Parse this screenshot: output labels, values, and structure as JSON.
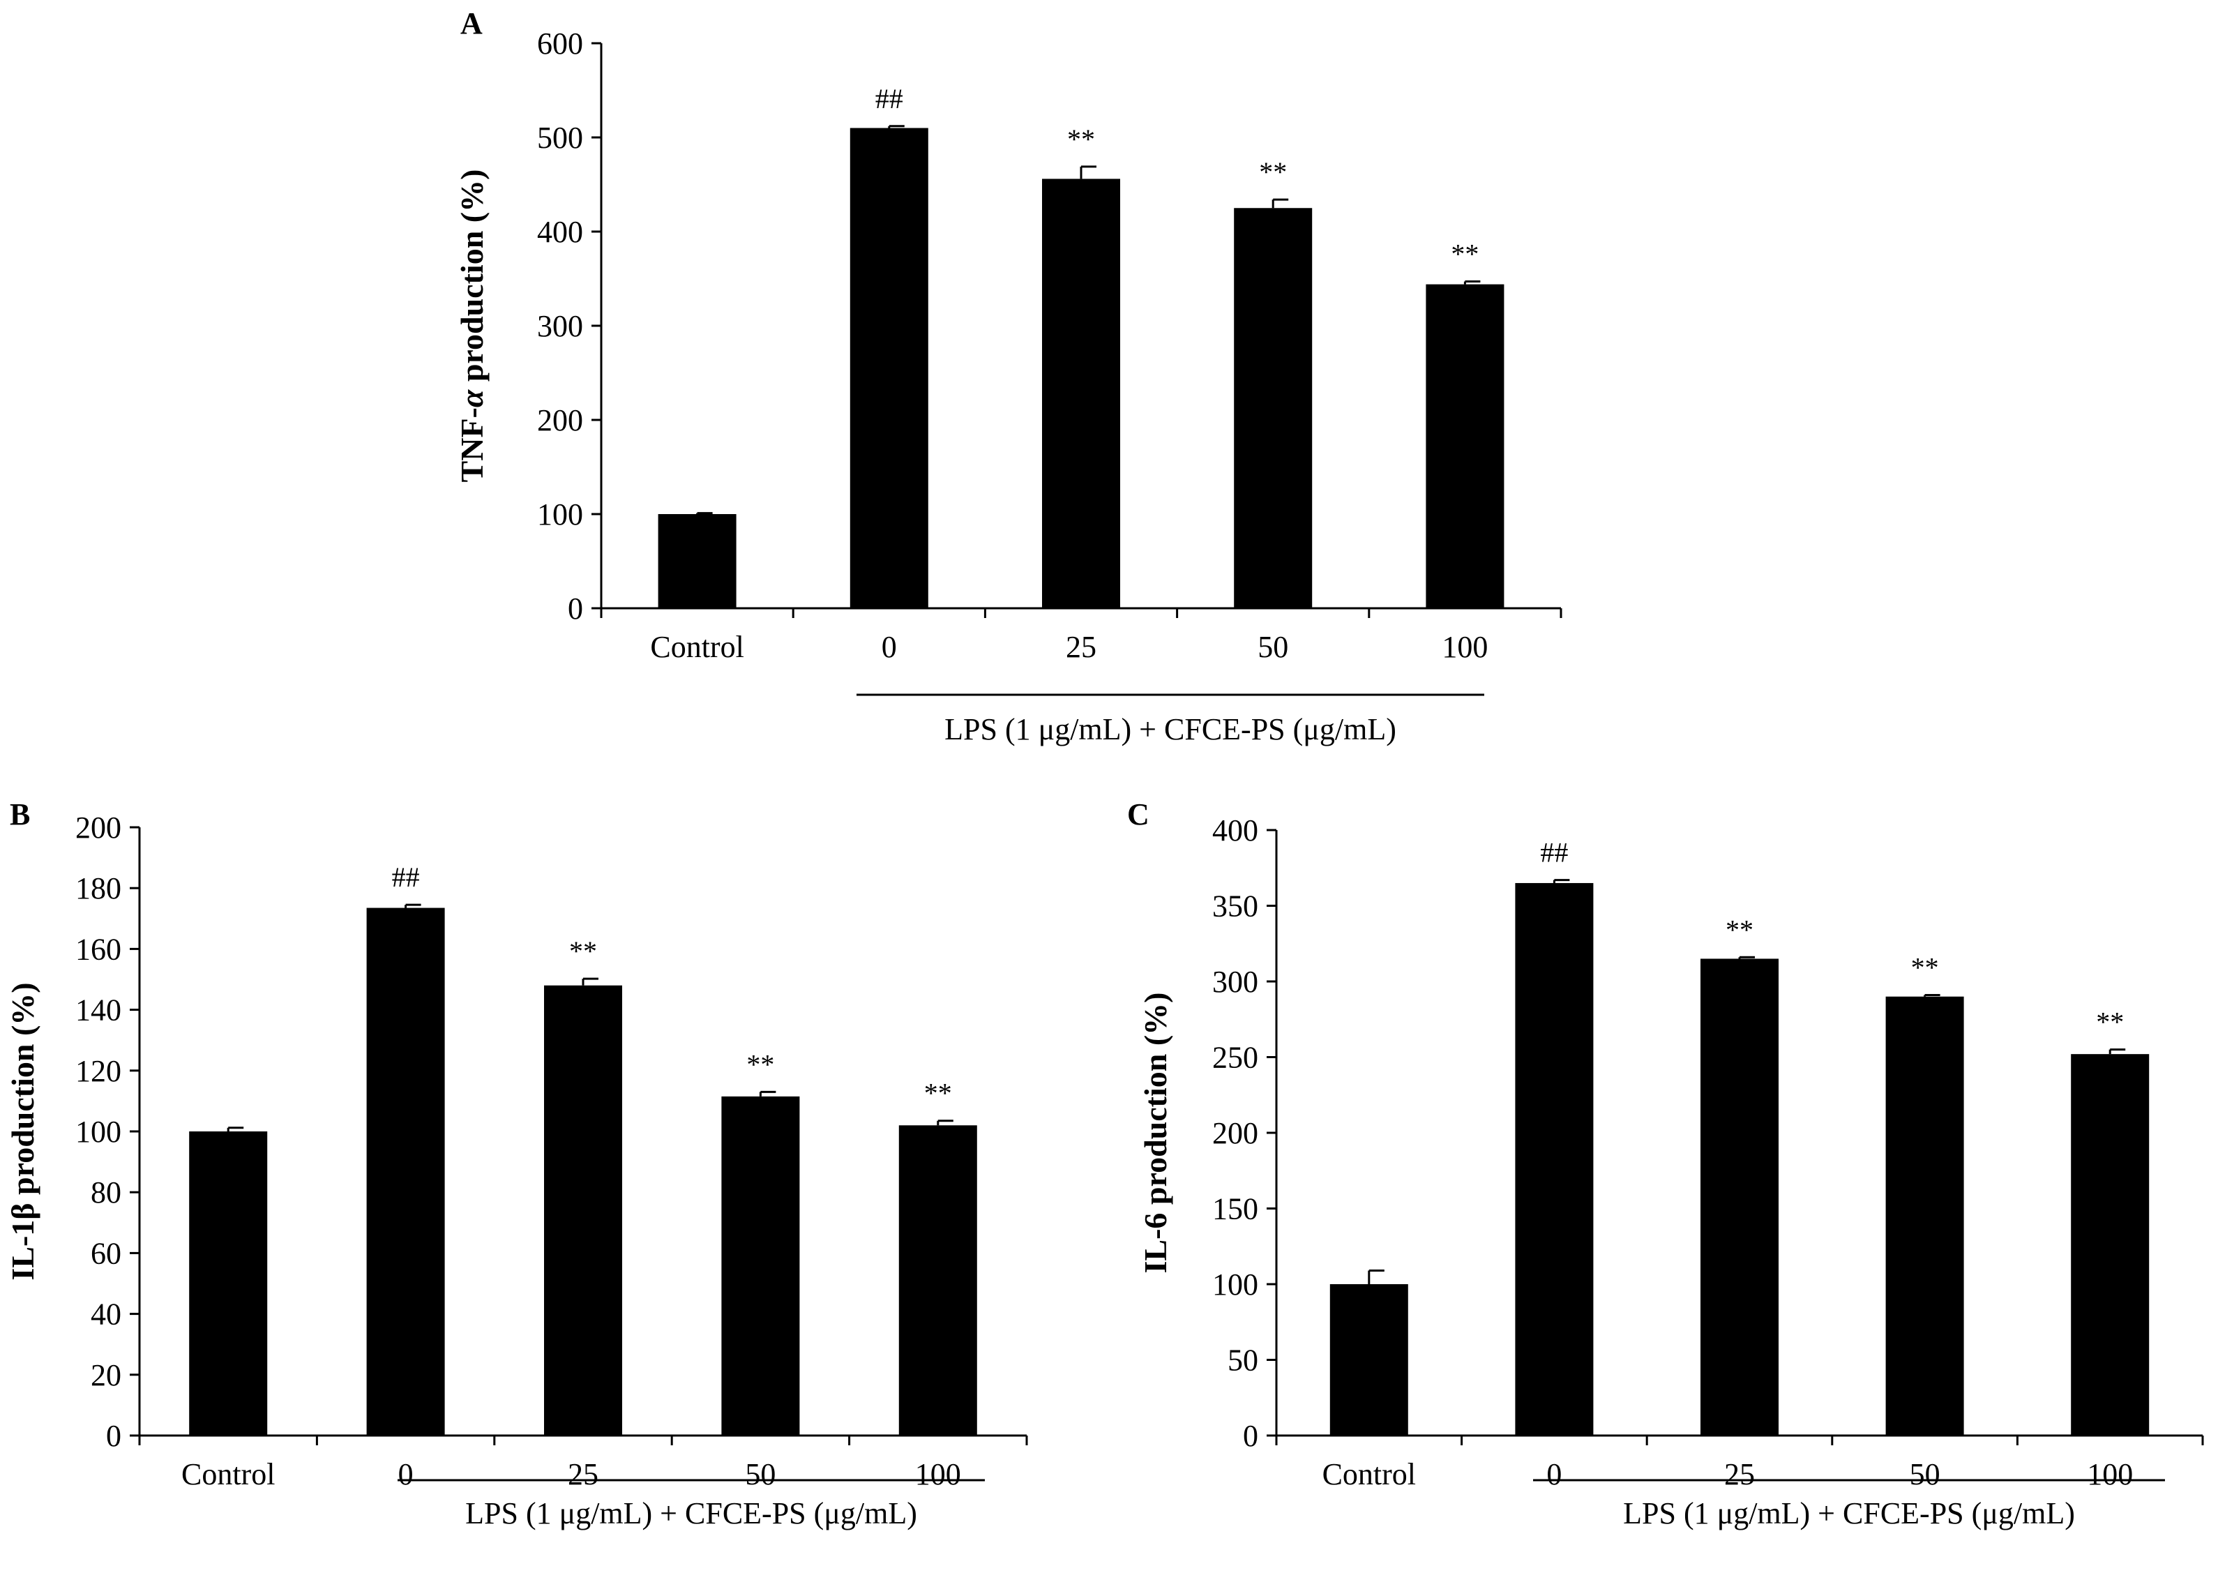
{
  "chart_data": [
    {
      "panel": "A",
      "type": "bar",
      "title": "",
      "xlabel": "LPS (1 μg/mL) + CFCE-PS (μg/mL)",
      "ylabel_prefix": "TNF-",
      "ylabel_italic": "α",
      "ylabel_suffix": " production (%)",
      "ylim": [
        0,
        600
      ],
      "yticks": [
        0,
        100,
        200,
        300,
        400,
        500,
        600
      ],
      "categories": [
        "Control",
        "0",
        "25",
        "50",
        "100"
      ],
      "values": [
        100,
        510,
        456,
        425,
        344
      ],
      "errors": [
        1,
        2,
        13,
        9,
        3
      ],
      "annotations": [
        "",
        "##",
        "**",
        "**",
        "**"
      ]
    },
    {
      "panel": "B",
      "type": "bar",
      "title": "",
      "xlabel": "LPS (1 μg/mL) + CFCE-PS (μg/mL)",
      "ylabel": "IL-1β production (%)",
      "ylim": [
        0,
        200
      ],
      "yticks": [
        0,
        20,
        40,
        60,
        80,
        100,
        120,
        140,
        160,
        180,
        200
      ],
      "categories": [
        "Control",
        "0",
        "25",
        "50",
        "100"
      ],
      "values": [
        100,
        173.5,
        148,
        111.5,
        102
      ],
      "errors": [
        1.2,
        1,
        2.2,
        1.5,
        1.5
      ],
      "annotations": [
        "",
        "##",
        "**",
        "**",
        "**"
      ]
    },
    {
      "panel": "C",
      "type": "bar",
      "title": "",
      "xlabel": "LPS (1 μg/mL) + CFCE-PS (μg/mL)",
      "ylabel": "IL-6 production (%)",
      "ylim": [
        0,
        400
      ],
      "yticks": [
        0,
        50,
        100,
        150,
        200,
        250,
        300,
        350,
        400
      ],
      "categories": [
        "Control",
        "0",
        "25",
        "50",
        "100"
      ],
      "values": [
        100,
        365,
        315,
        290,
        252
      ],
      "errors": [
        9,
        2,
        1,
        1,
        3
      ],
      "annotations": [
        "",
        "##",
        "**",
        "**",
        "**"
      ]
    }
  ]
}
